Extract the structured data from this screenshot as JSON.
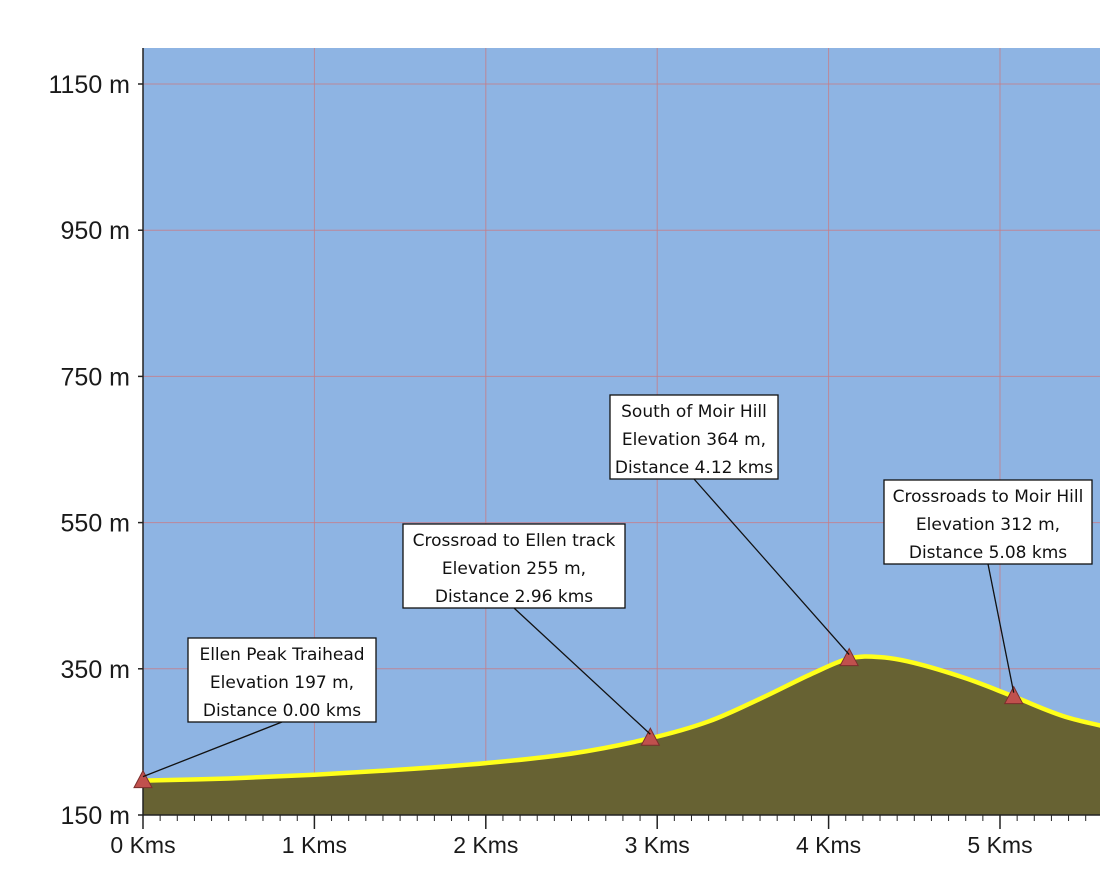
{
  "chart_data": {
    "type": "area",
    "x_unit_label": "Kms",
    "y_unit_label": "m",
    "xlim": [
      0,
      5.8
    ],
    "ylim": [
      150,
      1200
    ],
    "x_ticks": [
      0,
      1,
      2,
      3,
      4,
      5
    ],
    "x_tick_labels": [
      "0 Kms",
      "1 Kms",
      "2 Kms",
      "3 Kms",
      "4 Kms",
      "5 Kms"
    ],
    "y_ticks": [
      150,
      350,
      550,
      750,
      950,
      1150
    ],
    "y_tick_labels": [
      "150 m",
      "350 m",
      "550 m",
      "750 m",
      "950 m",
      "1150 m"
    ],
    "grid": true,
    "series": [
      {
        "x": [
          0,
          0.5,
          1.0,
          1.5,
          2.0,
          2.5,
          2.96,
          3.3,
          3.6,
          3.9,
          4.12,
          4.3,
          4.5,
          4.8,
          5.08,
          5.4,
          5.8
        ],
        "y": [
          197,
          200,
          205,
          212,
          221,
          234,
          255,
          278,
          309,
          343,
          364,
          366,
          358,
          337,
          312,
          283,
          262
        ]
      }
    ],
    "waypoints": [
      {
        "name": "Ellen Peak Traihead",
        "elev_text": "Elevation 197 m,",
        "dist_text": "Distance 0.00 kms",
        "x": 0,
        "y": 197
      },
      {
        "name": "Crossroad to Ellen track",
        "elev_text": "Elevation 255 m,",
        "dist_text": "Distance 2.96 kms",
        "x": 2.96,
        "y": 255
      },
      {
        "name": "South of Moir Hill",
        "elev_text": "Elevation 364 m,",
        "dist_text": "Distance 4.12 kms",
        "x": 4.12,
        "y": 364
      },
      {
        "name": "Crossroads to Moir Hill",
        "elev_text": "Elevation 312 m,",
        "dist_text": "Distance 5.08 kms",
        "x": 5.08,
        "y": 312
      }
    ],
    "colors": {
      "sky": "#8eb4e3",
      "ground": "#676233",
      "profile_line": "#ffff1a",
      "grid": "#c77d86",
      "marker": "#c0504d",
      "marker_stroke": "#7a2e2c"
    }
  }
}
